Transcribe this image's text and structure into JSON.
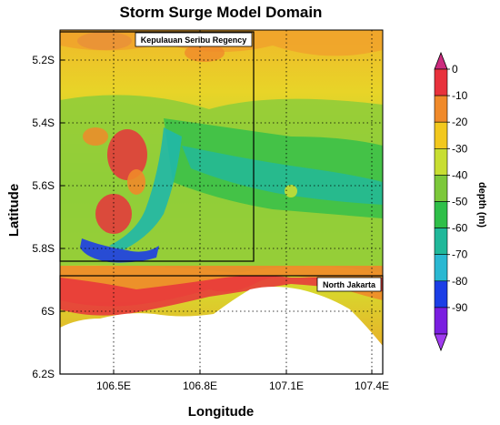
{
  "title": "Storm Surge Model Domain",
  "xlabel": "Longitude",
  "ylabel": "Latitude",
  "x_ticks": [
    "106.5E",
    "106.8E",
    "107.1E",
    "107.4E"
  ],
  "y_ticks": [
    "5.2S",
    "5.4S",
    "5.6S",
    "5.8S",
    "6S",
    "6.2S"
  ],
  "colorbar": {
    "label": "depth (m)",
    "ticks": [
      "0",
      "-10",
      "-20",
      "-30",
      "-40",
      "-50",
      "-60",
      "-70",
      "-80",
      "-90"
    ],
    "colors": [
      "#cc2b7e",
      "#e8323c",
      "#f08a2a",
      "#f2c81e",
      "#c8de32",
      "#7cc83a",
      "#2fbf49",
      "#20b89a",
      "#2ab8d2",
      "#1c3ee6",
      "#7a1ee0",
      "#a13cf0"
    ]
  },
  "regions": [
    {
      "name": "Kepulauan Seribu Regency"
    },
    {
      "name": "North Jakarta"
    }
  ]
}
